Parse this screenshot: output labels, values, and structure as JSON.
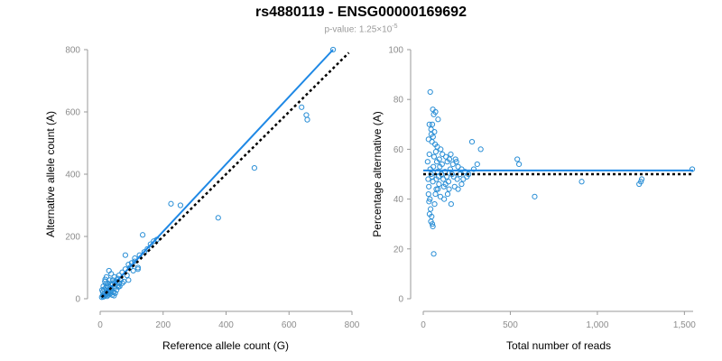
{
  "title": "rs4880119 - ENSG00000169692",
  "subtitle": {
    "prefix": "p-value: 1.25×10",
    "exponent": "-5"
  },
  "colors": {
    "points": "#2b8fd6",
    "fit_line": "#1e88e5",
    "reference_line": "#000000",
    "axis": "#9a9a9a"
  },
  "chart_data": [
    {
      "type": "scatter",
      "xlabel": "Reference allele count (G)",
      "ylabel": "Alternative allele count (A)",
      "xlim": [
        0,
        800
      ],
      "ylim": [
        0,
        800
      ],
      "xticks": [
        0,
        200,
        400,
        600,
        800
      ],
      "yticks": [
        0,
        200,
        400,
        600,
        800
      ],
      "xtick_labels": [
        "0",
        "200",
        "400",
        "600",
        "800"
      ],
      "ytick_labels": [
        "0",
        "200",
        "400",
        "600",
        "800"
      ],
      "grid": false,
      "fit_line": {
        "x": [
          5,
          740
        ],
        "y": [
          5,
          800
        ]
      },
      "reference_line": {
        "x": [
          5,
          790
        ],
        "y": [
          5,
          790
        ]
      },
      "points": [
        [
          5,
          5
        ],
        [
          8,
          10
        ],
        [
          10,
          6
        ],
        [
          12,
          14
        ],
        [
          15,
          18
        ],
        [
          18,
          12
        ],
        [
          20,
          25
        ],
        [
          22,
          8
        ],
        [
          25,
          22
        ],
        [
          28,
          30
        ],
        [
          30,
          15
        ],
        [
          12,
          30
        ],
        [
          18,
          35
        ],
        [
          25,
          40
        ],
        [
          35,
          28
        ],
        [
          40,
          45
        ],
        [
          45,
          35
        ],
        [
          50,
          55
        ],
        [
          55,
          42
        ],
        [
          60,
          50
        ],
        [
          38,
          12
        ],
        [
          42,
          20
        ],
        [
          48,
          18
        ],
        [
          30,
          60
        ],
        [
          20,
          70
        ],
        [
          15,
          55
        ],
        [
          35,
          80
        ],
        [
          28,
          90
        ],
        [
          45,
          70
        ],
        [
          60,
          75
        ],
        [
          65,
          60
        ],
        [
          70,
          85
        ],
        [
          80,
          95
        ],
        [
          85,
          75
        ],
        [
          90,
          110
        ],
        [
          95,
          100
        ],
        [
          100,
          115
        ],
        [
          105,
          90
        ],
        [
          110,
          120
        ],
        [
          120,
          100
        ],
        [
          75,
          55
        ],
        [
          80,
          140
        ],
        [
          90,
          60
        ],
        [
          110,
          130
        ],
        [
          120,
          95
        ],
        [
          125,
          140
        ],
        [
          135,
          205
        ],
        [
          140,
          150
        ],
        [
          150,
          160
        ],
        [
          160,
          175
        ],
        [
          170,
          185
        ],
        [
          180,
          190
        ],
        [
          225,
          305
        ],
        [
          255,
          300
        ],
        [
          375,
          260
        ],
        [
          490,
          420
        ],
        [
          640,
          615
        ],
        [
          655,
          590
        ],
        [
          658,
          575
        ],
        [
          740,
          800
        ],
        [
          10,
          40
        ],
        [
          8,
          22
        ],
        [
          14,
          8
        ],
        [
          22,
          15
        ],
        [
          26,
          12
        ],
        [
          32,
          22
        ],
        [
          36,
          35
        ],
        [
          44,
          10
        ],
        [
          52,
          28
        ],
        [
          56,
          65
        ],
        [
          62,
          40
        ],
        [
          70,
          50
        ],
        [
          18,
          48
        ],
        [
          6,
          28
        ],
        [
          16,
          62
        ],
        [
          24,
          50
        ],
        [
          34,
          45
        ],
        [
          40,
          60
        ],
        [
          46,
          52
        ],
        [
          58,
          38
        ]
      ]
    },
    {
      "type": "scatter",
      "xlabel": "Total number of reads",
      "ylabel": "Percentage alternative (A)",
      "xlim": [
        0,
        1550
      ],
      "ylim": [
        0,
        100
      ],
      "xticks": [
        0,
        500,
        1000,
        1500
      ],
      "yticks": [
        0,
        20,
        40,
        60,
        80,
        100
      ],
      "xtick_labels": [
        "0",
        "500",
        "1,000",
        "1,500"
      ],
      "ytick_labels": [
        "0",
        "20",
        "40",
        "60",
        "80",
        "100"
      ],
      "grid": false,
      "fit_line": {
        "y": 51.5
      },
      "reference_line": {
        "y": 50
      },
      "points": [
        [
          40,
          83
        ],
        [
          55,
          76
        ],
        [
          60,
          74
        ],
        [
          70,
          75
        ],
        [
          85,
          72
        ],
        [
          35,
          70
        ],
        [
          45,
          68
        ],
        [
          30,
          64
        ],
        [
          50,
          63
        ],
        [
          80,
          61
        ],
        [
          100,
          60
        ],
        [
          110,
          58
        ],
        [
          130,
          57
        ],
        [
          150,
          56
        ],
        [
          170,
          54
        ],
        [
          190,
          55
        ],
        [
          200,
          53
        ],
        [
          220,
          52
        ],
        [
          240,
          51
        ],
        [
          260,
          50
        ],
        [
          280,
          63
        ],
        [
          330,
          60
        ],
        [
          540,
          56
        ],
        [
          550,
          54
        ],
        [
          640,
          41
        ],
        [
          910,
          47
        ],
        [
          1240,
          46
        ],
        [
          1250,
          47
        ],
        [
          1255,
          48
        ],
        [
          1545,
          52
        ],
        [
          25,
          55
        ],
        [
          28,
          48
        ],
        [
          32,
          45
        ],
        [
          38,
          40
        ],
        [
          42,
          36
        ],
        [
          48,
          33
        ],
        [
          52,
          30
        ],
        [
          55,
          29
        ],
        [
          60,
          18
        ],
        [
          65,
          38
        ],
        [
          70,
          42
        ],
        [
          75,
          44
        ],
        [
          90,
          46
        ],
        [
          120,
          40
        ],
        [
          140,
          42
        ],
        [
          160,
          38
        ],
        [
          180,
          45
        ],
        [
          200,
          44
        ],
        [
          220,
          46
        ],
        [
          230,
          48
        ],
        [
          35,
          58
        ],
        [
          40,
          52
        ],
        [
          45,
          50
        ],
        [
          50,
          49
        ],
        [
          55,
          47
        ],
        [
          58,
          53
        ],
        [
          62,
          57
        ],
        [
          68,
          62
        ],
        [
          72,
          59
        ],
        [
          78,
          55
        ],
        [
          82,
          51
        ],
        [
          88,
          49
        ],
        [
          95,
          53
        ],
        [
          105,
          50
        ],
        [
          115,
          48
        ],
        [
          125,
          51
        ],
        [
          135,
          49
        ],
        [
          145,
          47
        ],
        [
          155,
          52
        ],
        [
          165,
          50
        ],
        [
          30,
          42
        ],
        [
          33,
          39
        ],
        [
          36,
          34
        ],
        [
          44,
          31
        ],
        [
          46,
          66
        ],
        [
          52,
          70
        ],
        [
          56,
          65
        ],
        [
          64,
          67
        ],
        [
          76,
          48
        ],
        [
          84,
          44
        ],
        [
          92,
          56
        ],
        [
          98,
          41
        ],
        [
          108,
          54
        ],
        [
          118,
          45
        ],
        [
          128,
          46
        ],
        [
          138,
          55
        ],
        [
          148,
          44
        ],
        [
          158,
          58
        ],
        [
          175,
          49
        ],
        [
          185,
          56
        ],
        [
          195,
          48
        ],
        [
          210,
          50
        ],
        [
          250,
          49
        ],
        [
          290,
          52
        ],
        [
          310,
          54
        ]
      ]
    }
  ]
}
